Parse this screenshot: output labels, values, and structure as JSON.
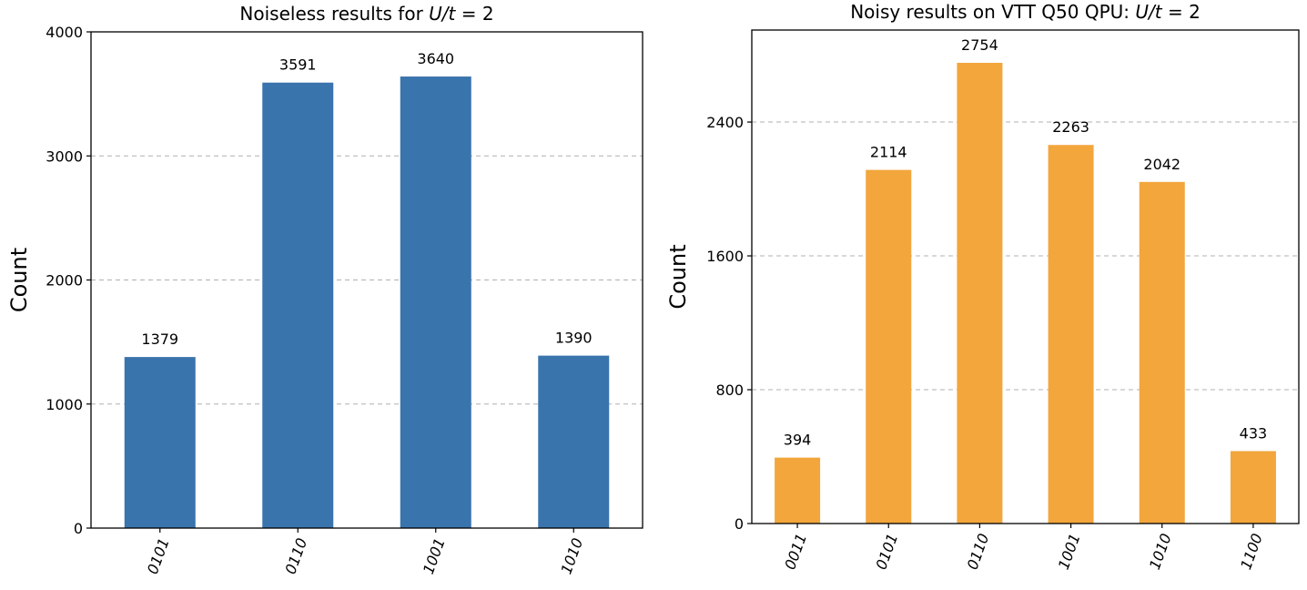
{
  "chart_data": [
    {
      "type": "bar",
      "title": "Noiseless results for U/t = 2",
      "title_parts": {
        "prefix": "Noiseless results for ",
        "math": "U/t",
        "suffix": " = 2"
      },
      "xlabel": "",
      "ylabel": "Count",
      "categories": [
        "0101",
        "0110",
        "1001",
        "1010"
      ],
      "values": [
        1379,
        3591,
        3640,
        1390
      ],
      "ylim": [
        0,
        4000
      ],
      "yticks": [
        0,
        1000,
        2000,
        3000,
        4000
      ],
      "ytick_labels": [
        "0",
        "1000",
        "2000",
        "3000",
        "4000"
      ],
      "grid": "horizontal dashed",
      "bar_color": "#3a74ad"
    },
    {
      "type": "bar",
      "title": "Noisy results on VTT Q50 QPU: U/t = 2",
      "title_parts": {
        "prefix": "Noisy results on VTT Q50 QPU: ",
        "math": "U/t",
        "suffix": " = 2"
      },
      "xlabel": "",
      "ylabel": "Count",
      "categories": [
        "0011",
        "0101",
        "0110",
        "1001",
        "1010",
        "1100"
      ],
      "values": [
        394,
        2114,
        2754,
        2263,
        2042,
        433
      ],
      "ylim": [
        0,
        2950
      ],
      "yticks": [
        0,
        800,
        1600,
        2400
      ],
      "ytick_labels": [
        "0",
        "800",
        "1600",
        "2400"
      ],
      "grid": "horizontal dashed",
      "bar_color": "#f2a63c"
    }
  ]
}
